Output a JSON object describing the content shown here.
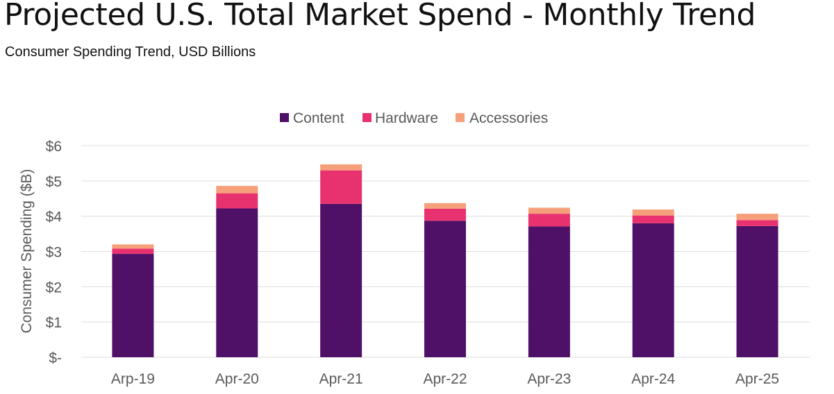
{
  "header": {
    "title": "Projected U.S. Total Market Spend - Monthly Trend",
    "subtitle": "Consumer Spending Trend, USD Billions"
  },
  "colors": {
    "content": "#4f1168",
    "hardware": "#e7326f",
    "accessories": "#f5a07a",
    "grid": "#dedede",
    "axis_text": "#595959"
  },
  "chart_data": {
    "type": "bar",
    "stacked": true,
    "title": "",
    "xlabel": "",
    "ylabel": "Consumer Spending ($B)",
    "ylim": [
      0,
      6
    ],
    "yticks": [
      0,
      1,
      2,
      3,
      4,
      5,
      6
    ],
    "ytick_labels": [
      "$-",
      "$1",
      "$2",
      "$3",
      "$4",
      "$5",
      "$6"
    ],
    "categories": [
      "Arp-19",
      "Apr-20",
      "Apr-21",
      "Apr-22",
      "Apr-23",
      "Apr-24",
      "Apr-25"
    ],
    "series": [
      {
        "name": "Content",
        "color": "#4f1168",
        "values": [
          2.93,
          4.22,
          4.35,
          3.87,
          3.71,
          3.8,
          3.72
        ]
      },
      {
        "name": "Hardware",
        "color": "#e7326f",
        "values": [
          0.15,
          0.43,
          0.95,
          0.34,
          0.36,
          0.22,
          0.17
        ]
      },
      {
        "name": "Accessories",
        "color": "#f5a07a",
        "values": [
          0.12,
          0.21,
          0.17,
          0.16,
          0.17,
          0.17,
          0.18
        ]
      }
    ],
    "grid": true,
    "legend_position": "top-center"
  }
}
